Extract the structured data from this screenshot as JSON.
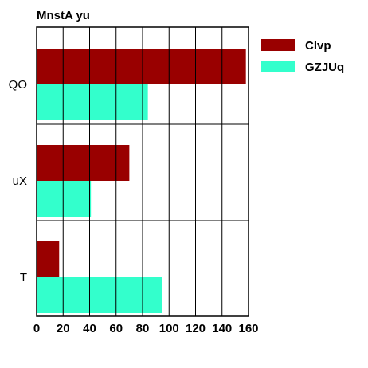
{
  "chart_data": {
    "type": "bar",
    "orientation": "horizontal",
    "title": "MnstA yu",
    "categories": [
      "QO",
      "uX",
      "T"
    ],
    "series": [
      {
        "name": "Clvp",
        "values": [
          158,
          70,
          17
        ],
        "color": "#990000"
      },
      {
        "name": "GZJUq",
        "values": [
          84,
          41,
          95
        ],
        "color": "#33ffcc"
      }
    ],
    "xlabel": "",
    "ylabel": "",
    "xlim": [
      0,
      160
    ],
    "xticks": [
      "0",
      "20",
      "40",
      "60",
      "80",
      "100",
      "120",
      "140",
      "160"
    ],
    "grid": true,
    "legend_position": "top-right"
  }
}
